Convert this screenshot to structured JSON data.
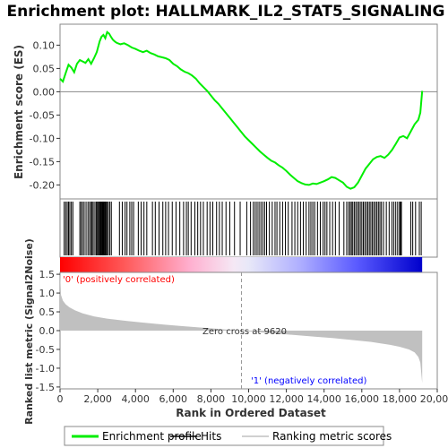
{
  "chart_data": {
    "type": "line",
    "title": "Enrichment plot: HALLMARK_IL2_STAT5_SIGNALING",
    "es_panel": {
      "ylabel": "Enrichment score (ES)",
      "ylim": [
        -0.23,
        0.145
      ],
      "yticks": [
        0.1,
        0.05,
        0.0,
        -0.05,
        -0.1,
        -0.15,
        -0.2
      ],
      "ytick_labels": [
        "0.10",
        "0.05",
        "0.00",
        "-0.05",
        "-0.10",
        "-0.15",
        "-0.20"
      ],
      "series": [
        {
          "name": "Enrichment profile",
          "color": "#00ee00",
          "x": [
            0,
            150,
            300,
            450,
            600,
            750,
            900,
            1050,
            1200,
            1350,
            1500,
            1650,
            1800,
            1950,
            2100,
            2200,
            2300,
            2400,
            2500,
            2600,
            2700,
            2800,
            2900,
            3000,
            3200,
            3400,
            3600,
            3800,
            4000,
            4200,
            4400,
            4600,
            4800,
            5000,
            5200,
            5400,
            5600,
            5800,
            6000,
            6200,
            6400,
            6600,
            6800,
            7000,
            7200,
            7400,
            7600,
            7800,
            8000,
            8200,
            8400,
            8600,
            8800,
            9000,
            9200,
            9400,
            9600,
            9800,
            10000,
            10200,
            10400,
            10600,
            10800,
            11000,
            11200,
            11400,
            11600,
            11800,
            12000,
            12200,
            12400,
            12600,
            12800,
            13000,
            13200,
            13400,
            13600,
            13800,
            14000,
            14200,
            14400,
            14600,
            14800,
            15000,
            15200,
            15400,
            15600,
            15800,
            16000,
            16200,
            16400,
            16600,
            16800,
            17000,
            17200,
            17400,
            17600,
            17800,
            18000,
            18200,
            18400,
            18600,
            18800,
            19000,
            19100,
            19200
          ],
          "y": [
            0.028,
            0.022,
            0.04,
            0.058,
            0.052,
            0.042,
            0.06,
            0.068,
            0.065,
            0.062,
            0.07,
            0.06,
            0.072,
            0.085,
            0.108,
            0.118,
            0.122,
            0.115,
            0.128,
            0.125,
            0.118,
            0.112,
            0.108,
            0.105,
            0.102,
            0.104,
            0.1,
            0.095,
            0.092,
            0.088,
            0.085,
            0.088,
            0.083,
            0.08,
            0.076,
            0.074,
            0.072,
            0.068,
            0.06,
            0.055,
            0.048,
            0.043,
            0.04,
            0.035,
            0.028,
            0.018,
            0.01,
            0.002,
            -0.008,
            -0.018,
            -0.026,
            -0.036,
            -0.046,
            -0.056,
            -0.066,
            -0.076,
            -0.086,
            -0.096,
            -0.104,
            -0.112,
            -0.12,
            -0.128,
            -0.135,
            -0.142,
            -0.148,
            -0.152,
            -0.158,
            -0.163,
            -0.17,
            -0.178,
            -0.185,
            -0.192,
            -0.196,
            -0.199,
            -0.2,
            -0.197,
            -0.198,
            -0.195,
            -0.192,
            -0.188,
            -0.183,
            -0.185,
            -0.19,
            -0.195,
            -0.204,
            -0.208,
            -0.205,
            -0.195,
            -0.18,
            -0.165,
            -0.155,
            -0.145,
            -0.14,
            -0.138,
            -0.142,
            -0.135,
            -0.125,
            -0.112,
            -0.098,
            -0.095,
            -0.1,
            -0.085,
            -0.07,
            -0.06,
            -0.045,
            0.002
          ]
        }
      ]
    },
    "hits": {
      "label": "Hits",
      "positions": [
        220,
        300,
        380,
        450,
        520,
        600,
        680,
        1050,
        1120,
        1200,
        1280,
        1380,
        1480,
        1560,
        1640,
        1700,
        1760,
        1850,
        1920,
        1980,
        2030,
        2080,
        2120,
        2160,
        2200,
        2240,
        2280,
        2320,
        2360,
        2400,
        2440,
        2500,
        2560,
        2640,
        2720,
        3150,
        3300,
        3450,
        3550,
        3700,
        3800,
        3900,
        4150,
        4300,
        4450,
        4600,
        4900,
        5050,
        5250,
        5450,
        5600,
        5750,
        5950,
        6150,
        6350,
        6550,
        6700,
        6800,
        6950,
        7150,
        7300,
        7450,
        7600,
        7800,
        7950,
        8100,
        8300,
        8450,
        8600,
        8800,
        9000,
        9250,
        9550,
        9900,
        10100,
        10250,
        10350,
        10450,
        10550,
        10650,
        10750,
        10850,
        10950,
        11100,
        11250,
        11400,
        11500,
        11650,
        11800,
        11950,
        12100,
        12300,
        12450,
        12600,
        12750,
        12900,
        13050,
        13200,
        13300,
        13400,
        13500,
        13650,
        13800,
        13950,
        14050,
        14150,
        14300,
        14450,
        14600,
        14800,
        15050,
        15200,
        15300,
        15380,
        15450,
        15520,
        15600,
        15680,
        15760,
        15840,
        15920,
        16000,
        16080,
        16160,
        16240,
        16320,
        16400,
        16480,
        16560,
        16640,
        16720,
        16800,
        16880,
        16960,
        17040,
        17150,
        17300,
        17450,
        17600,
        17700,
        17800,
        17900,
        18000,
        18050,
        18100,
        18600,
        18700,
        18850,
        19050,
        19150
      ]
    },
    "metric_panel": {
      "ylabel": "Ranked list metric (Signal2Noise)",
      "ylim": [
        -1.55,
        1.55
      ],
      "yticks": [
        1.5,
        1.0,
        0.5,
        0.0,
        -0.5,
        -1.0,
        -1.5
      ],
      "ytick_labels": [
        "1.5",
        "1.0",
        "0.5",
        "0.0",
        "-0.5",
        "-1.0",
        "-1.5"
      ],
      "fill_color": "#c0c0c0",
      "x": [
        0,
        50,
        150,
        300,
        500,
        800,
        1200,
        1800,
        2500,
        3500,
        4500,
        5500,
        6500,
        7500,
        8500,
        9620,
        10500,
        11500,
        12500,
        13500,
        14500,
        15500,
        16500,
        17500,
        18000,
        18500,
        18800,
        19000,
        19100,
        19200
      ],
      "y": [
        1.55,
        0.95,
        0.8,
        0.7,
        0.62,
        0.54,
        0.46,
        0.38,
        0.32,
        0.26,
        0.21,
        0.16,
        0.12,
        0.08,
        0.04,
        0.0,
        -0.04,
        -0.08,
        -0.12,
        -0.16,
        -0.2,
        -0.25,
        -0.3,
        -0.38,
        -0.43,
        -0.5,
        -0.58,
        -0.7,
        -0.85,
        -1.4
      ]
    },
    "xlabel": "Rank in Ordered Dataset",
    "xlim": [
      0,
      20000
    ],
    "xticks": [
      0,
      2000,
      4000,
      6000,
      8000,
      10000,
      12000,
      14000,
      16000,
      18000,
      20000
    ],
    "xtick_labels": [
      "0",
      "2,000",
      "4,000",
      "6,000",
      "8,000",
      "10,000",
      "12,000",
      "14,000",
      "16,000",
      "18,000",
      "20,000"
    ],
    "n_genes": 19200,
    "zero_cross": 9620,
    "annotations": {
      "pos_label": "'0' (positively correlated)",
      "neg_label": "'1' (negatively correlated)",
      "zero_cross_label": "Zero cross at 9620"
    },
    "colors": {
      "positive": "#ff0000",
      "negative": "#0000ff",
      "es_line": "#00ee00",
      "pos_text": "#ff0000",
      "neg_text": "#0000ff"
    },
    "legend": {
      "placement": "bottom",
      "items": [
        {
          "label": "Enrichment profile",
          "color": "#00ee00",
          "style": "line"
        },
        {
          "label": "Hits",
          "color": "#000000",
          "style": "line"
        },
        {
          "label": "Ranking metric scores",
          "color": "#c0c0c0",
          "style": "line"
        }
      ]
    }
  }
}
